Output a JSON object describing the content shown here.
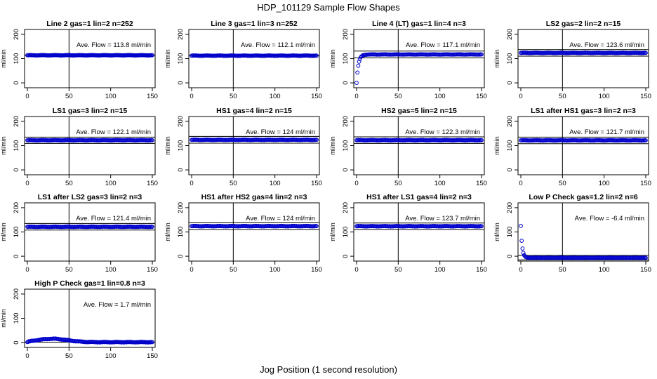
{
  "figure": {
    "title": "HDP_101129  Sample Flow Shapes",
    "xlabel": "Jog Position (1 second resolution)"
  },
  "colors": {
    "points": "#0000cc",
    "axis": "#000000"
  },
  "chart_data": [
    {
      "type": "scatter",
      "title": "Line 2 gas=1 lin=2 n=252",
      "ylabel": "ml/min",
      "annotation": "Ave. Flow =  113.8  ml/min",
      "mean": 113.8,
      "xlim": [
        0,
        150
      ],
      "ylim": [
        -20,
        220
      ],
      "xticks": [
        0,
        50,
        100,
        150
      ],
      "yticks": [
        0,
        100,
        200
      ],
      "vline": 50,
      "hlines": [
        113.8
      ],
      "profile": {
        "kind": "flat",
        "level": 113.8
      }
    },
    {
      "type": "scatter",
      "title": "Line 3 gas=1 lin=3 n=252",
      "ylabel": "ml/min",
      "annotation": "Ave. Flow =  112.1  ml/min",
      "mean": 112.1,
      "xlim": [
        0,
        150
      ],
      "ylim": [
        -20,
        220
      ],
      "xticks": [
        0,
        50,
        100,
        150
      ],
      "yticks": [
        0,
        100,
        200
      ],
      "vline": 50,
      "hlines": [
        112.1
      ],
      "profile": {
        "kind": "flat",
        "level": 112.1
      }
    },
    {
      "type": "scatter",
      "title": "Line 4 (LT) gas=1 lin=4 n=3",
      "ylabel": "ml/min",
      "annotation": "Ave. Flow =  117.1  ml/min",
      "mean": 117.1,
      "xlim": [
        0,
        150
      ],
      "ylim": [
        -20,
        220
      ],
      "xticks": [
        0,
        50,
        100,
        150
      ],
      "yticks": [
        0,
        100,
        200
      ],
      "vline": 50,
      "hlines": [
        103,
        131
      ],
      "profile": {
        "kind": "rise",
        "level": 117.1,
        "start": 0
      }
    },
    {
      "type": "scatter",
      "title": "LS2 gas=2 lin=2 n=15",
      "ylabel": "ml/min",
      "annotation": "Ave. Flow =  123.6  ml/min",
      "mean": 123.6,
      "xlim": [
        0,
        150
      ],
      "ylim": [
        -20,
        220
      ],
      "xticks": [
        0,
        50,
        100,
        150
      ],
      "yticks": [
        0,
        100,
        200
      ],
      "vline": 50,
      "hlines": [
        110,
        137
      ],
      "profile": {
        "kind": "flat",
        "level": 123.6
      }
    },
    {
      "type": "scatter",
      "title": "LS1 gas=3 lin=2 n=15",
      "ylabel": "ml/min",
      "annotation": "Ave. Flow =  122.1  ml/min",
      "mean": 122.1,
      "xlim": [
        0,
        150
      ],
      "ylim": [
        -20,
        220
      ],
      "xticks": [
        0,
        50,
        100,
        150
      ],
      "yticks": [
        0,
        100,
        200
      ],
      "vline": 50,
      "hlines": [
        109,
        135
      ],
      "profile": {
        "kind": "flat",
        "level": 122.1
      }
    },
    {
      "type": "scatter",
      "title": "HS1 gas=4 lin=2 n=15",
      "ylabel": "ml/min",
      "annotation": "Ave. Flow =  124  ml/min",
      "mean": 124,
      "xlim": [
        0,
        150
      ],
      "ylim": [
        -20,
        220
      ],
      "xticks": [
        0,
        50,
        100,
        150
      ],
      "yticks": [
        0,
        100,
        200
      ],
      "vline": 50,
      "hlines": [
        110,
        138
      ],
      "profile": {
        "kind": "flat",
        "level": 124
      }
    },
    {
      "type": "scatter",
      "title": "HS2 gas=5 lin=2 n=15",
      "ylabel": "ml/min",
      "annotation": "Ave. Flow =  122.3  ml/min",
      "mean": 122.3,
      "xlim": [
        0,
        150
      ],
      "ylim": [
        -20,
        220
      ],
      "xticks": [
        0,
        50,
        100,
        150
      ],
      "yticks": [
        0,
        100,
        200
      ],
      "vline": 50,
      "hlines": [
        109,
        136
      ],
      "profile": {
        "kind": "flat",
        "level": 122.3
      }
    },
    {
      "type": "scatter",
      "title": "LS1 after HS1 gas=3 lin=2 n=3",
      "ylabel": "ml/min",
      "annotation": "Ave. Flow =  121.7  ml/min",
      "mean": 121.7,
      "xlim": [
        0,
        150
      ],
      "ylim": [
        -20,
        220
      ],
      "xticks": [
        0,
        50,
        100,
        150
      ],
      "yticks": [
        0,
        100,
        200
      ],
      "vline": 50,
      "hlines": [
        108,
        135
      ],
      "profile": {
        "kind": "flat",
        "level": 121.7
      }
    },
    {
      "type": "scatter",
      "title": "LS1 after LS2 gas=3 lin=2 n=3",
      "ylabel": "ml/min",
      "annotation": "Ave. Flow =  121.4  ml/min",
      "mean": 121.4,
      "xlim": [
        0,
        150
      ],
      "ylim": [
        -20,
        220
      ],
      "xticks": [
        0,
        50,
        100,
        150
      ],
      "yticks": [
        0,
        100,
        200
      ],
      "vline": 50,
      "hlines": [
        108,
        135
      ],
      "profile": {
        "kind": "flat",
        "level": 121.4
      }
    },
    {
      "type": "scatter",
      "title": "HS1 after HS2 gas=4 lin=2 n=3",
      "ylabel": "ml/min",
      "annotation": "Ave. Flow =  124  ml/min",
      "mean": 124,
      "xlim": [
        0,
        150
      ],
      "ylim": [
        -20,
        220
      ],
      "xticks": [
        0,
        50,
        100,
        150
      ],
      "yticks": [
        0,
        100,
        200
      ],
      "vline": 50,
      "hlines": [
        110,
        138
      ],
      "profile": {
        "kind": "flat",
        "level": 124
      }
    },
    {
      "type": "scatter",
      "title": "HS1 after LS1 gas=4 lin=2 n=3",
      "ylabel": "ml/min",
      "annotation": "Ave. Flow =  123.7  ml/min",
      "mean": 123.7,
      "xlim": [
        0,
        150
      ],
      "ylim": [
        -20,
        220
      ],
      "xticks": [
        0,
        50,
        100,
        150
      ],
      "yticks": [
        0,
        100,
        200
      ],
      "vline": 50,
      "hlines": [
        110,
        137
      ],
      "profile": {
        "kind": "flat",
        "level": 123.7
      }
    },
    {
      "type": "scatter",
      "title": "Low P Check gas=1.2 lin=2 n=6",
      "ylabel": "ml/min",
      "annotation": "Ave. Flow =  -6.4  ml/min",
      "mean": -6.4,
      "xlim": [
        0,
        150
      ],
      "ylim": [
        -20,
        220
      ],
      "xticks": [
        0,
        50,
        100,
        150
      ],
      "yticks": [
        0,
        100,
        200
      ],
      "vline": 50,
      "hlines": [
        -15,
        4
      ],
      "profile": {
        "kind": "decay",
        "level": -6.4,
        "start": 125
      }
    },
    {
      "type": "scatter",
      "title": "High P Check gas=1 lin=0.8 n=3",
      "ylabel": "ml/min",
      "annotation": "Ave. Flow =  1.7  ml/min",
      "mean": 1.7,
      "xlim": [
        0,
        150
      ],
      "ylim": [
        -20,
        220
      ],
      "xticks": [
        0,
        50,
        100,
        150
      ],
      "yticks": [
        0,
        100,
        200
      ],
      "vline": 50,
      "hlines": [
        1.7
      ],
      "profile": {
        "kind": "hump",
        "level": 1.7,
        "peak": 14
      }
    }
  ]
}
